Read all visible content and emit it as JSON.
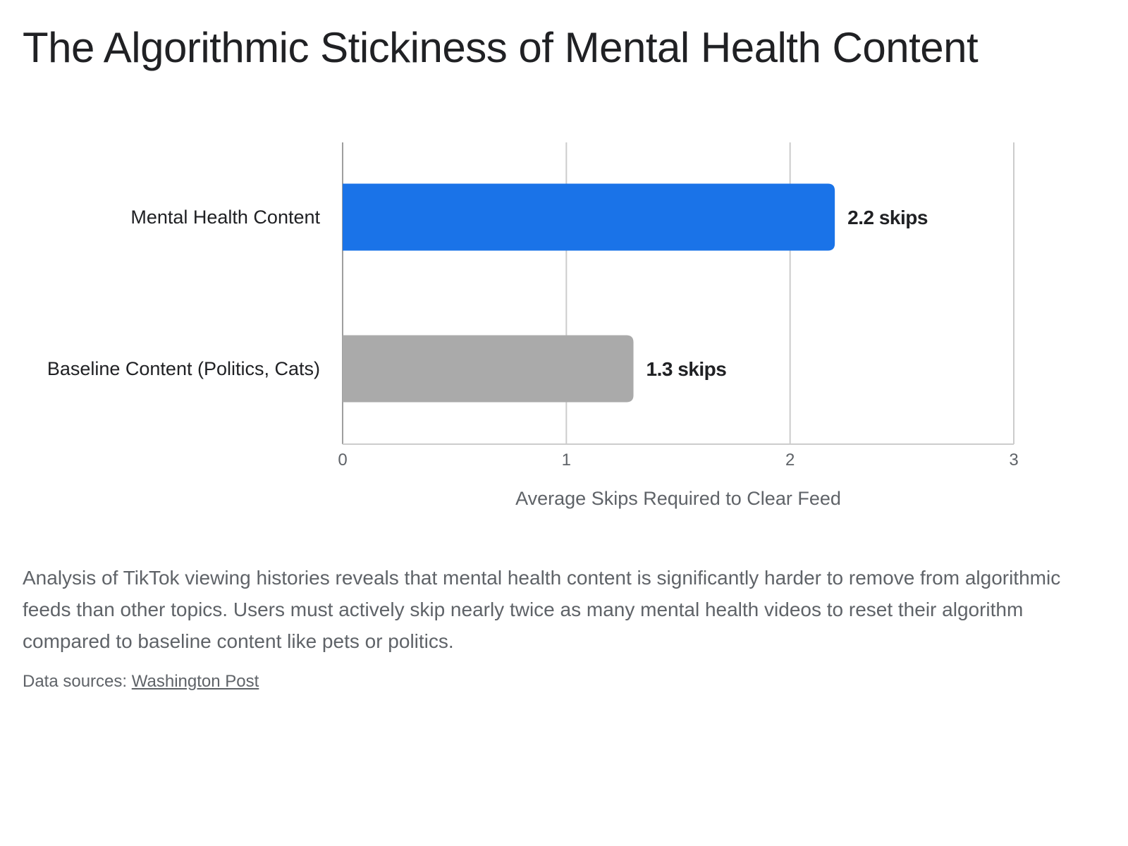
{
  "header": {
    "title": "The Algorithmic Stickiness of Mental Health Content"
  },
  "chart_data": {
    "type": "bar",
    "orientation": "horizontal",
    "categories": [
      "Mental Health Content",
      "Baseline Content (Politics, Cats)"
    ],
    "values": [
      2.2,
      1.3
    ],
    "data_labels": [
      "2.2 skips",
      "1.3 skips"
    ],
    "colors": [
      "#1a73e8",
      "#aaaaaa"
    ],
    "xlabel": "Average Skips Required to Clear Feed",
    "ylabel": "",
    "xlim": [
      0,
      3
    ],
    "x_ticks": [
      "0",
      "1",
      "2",
      "3"
    ],
    "grid": true,
    "legend": "none"
  },
  "description": "Analysis of TikTok viewing histories reveals that mental health content is significantly harder to remove from algorithmic feeds than other topics. Users must actively skip nearly twice as many mental health videos to reset their algorithm compared to baseline content like pets or politics.",
  "source": {
    "prefix": "Data sources:",
    "link_text": "Washington Post"
  }
}
